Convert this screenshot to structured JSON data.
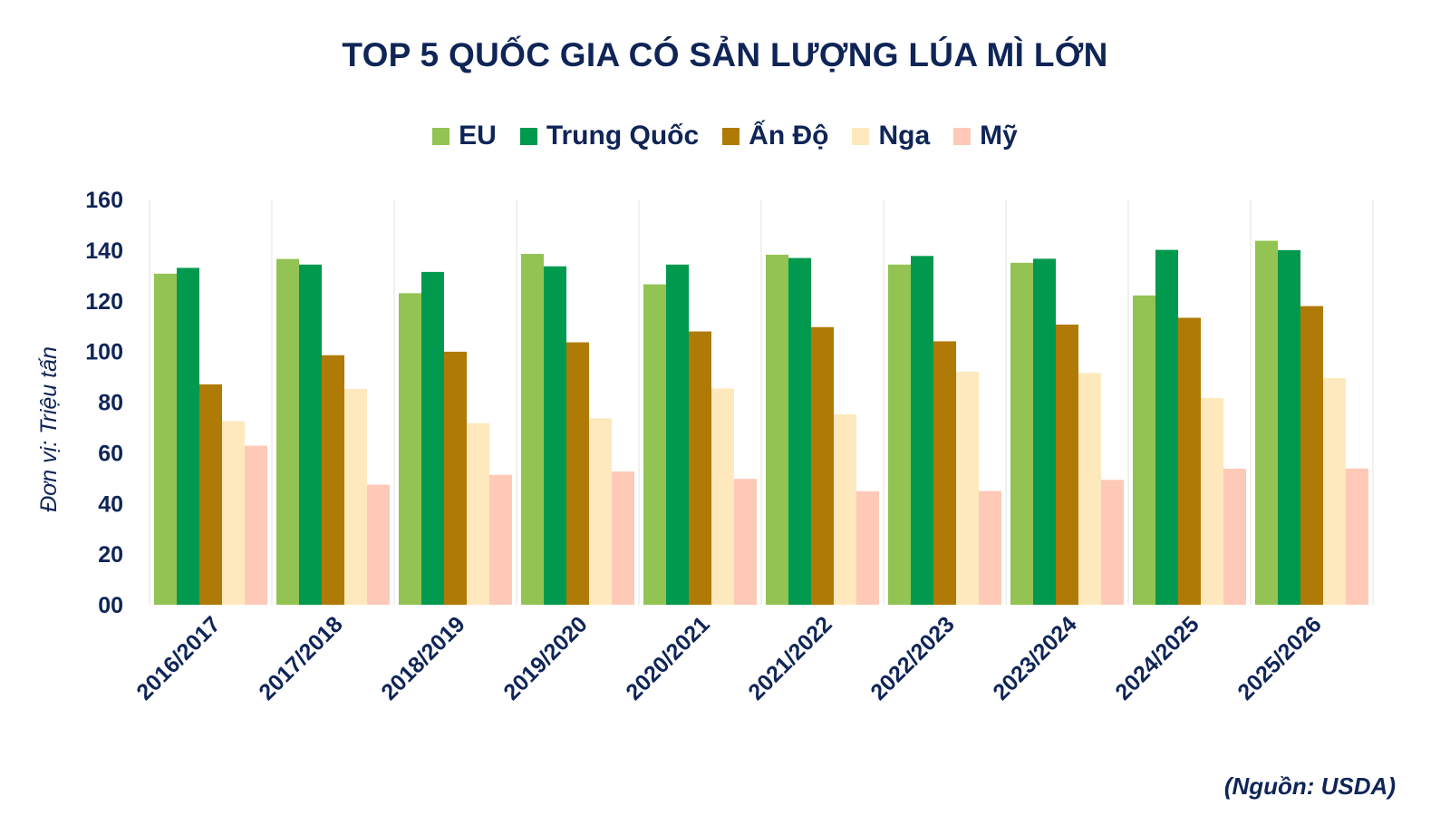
{
  "chart_data": {
    "type": "bar",
    "title": "TOP 5 QUỐC GIA CÓ SẢN LƯỢNG LÚA MÌ LỚN",
    "ylabel": "Đơn vị: Triệu tấn",
    "xlabel": "",
    "ylim": [
      0,
      160
    ],
    "yticks": [
      "00",
      "20",
      "40",
      "60",
      "80",
      "100",
      "120",
      "140",
      "160"
    ],
    "grid": "vertical separators between categories",
    "legend_position": "top",
    "categories": [
      "2016/2017",
      "2017/2018",
      "2018/2019",
      "2019/2020",
      "2020/2021",
      "2021/2022",
      "2022/2023",
      "2023/2024",
      "2024/2025",
      "2025/2026"
    ],
    "series": [
      {
        "name": "EU",
        "color": "#92c353",
        "values": [
          130.7,
          136.5,
          123.0,
          138.5,
          126.5,
          138.2,
          134.3,
          135.0,
          122.1,
          143.7
        ]
      },
      {
        "name": "Trung Quốc",
        "color": "#00994d",
        "values": [
          133.0,
          134.3,
          131.4,
          133.6,
          134.3,
          136.9,
          137.7,
          136.6,
          140.1,
          140.0
        ]
      },
      {
        "name": "Ấn Độ",
        "color": "#b07a06",
        "values": [
          87.0,
          98.5,
          99.9,
          103.6,
          107.9,
          109.6,
          104.0,
          110.6,
          113.3,
          117.9
        ]
      },
      {
        "name": "Nga",
        "color": "#fde9bd",
        "values": [
          72.5,
          85.2,
          71.7,
          73.6,
          85.4,
          75.2,
          92.0,
          91.5,
          81.6,
          89.5
        ]
      },
      {
        "name": "Mỹ",
        "color": "#ffc9b7",
        "values": [
          62.8,
          47.4,
          51.3,
          52.6,
          49.7,
          44.8,
          44.9,
          49.3,
          53.7,
          53.8
        ]
      }
    ],
    "source": "(Nguồn: USDA)"
  }
}
